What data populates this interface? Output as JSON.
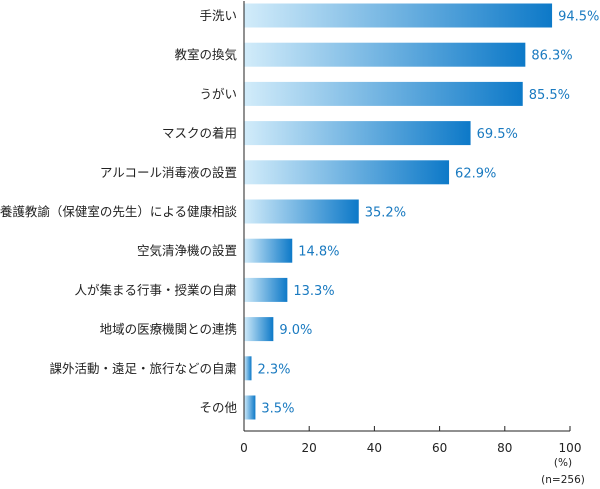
{
  "chart_data": {
    "type": "bar",
    "orientation": "horizontal",
    "categories": [
      "手洗い",
      "教室の換気",
      "うがい",
      "マスクの着用",
      "アルコール消毒液の設置",
      "養護教諭（保健室の先生）による健康相談",
      "空気清浄機の設置",
      "人が集まる行事・授業の自粛",
      "地域の医療機関との連携",
      "課外活動・遠足・旅行などの自粛",
      "その他"
    ],
    "values": [
      94.5,
      86.3,
      85.5,
      69.5,
      62.9,
      35.2,
      14.8,
      13.3,
      9.0,
      2.3,
      3.5
    ],
    "value_labels": [
      "94.5%",
      "86.3%",
      "85.5%",
      "69.5%",
      "62.9%",
      "35.2%",
      "14.8%",
      "13.3%",
      "9.0%",
      "2.3%",
      "3.5%"
    ],
    "xlim": [
      0,
      100
    ],
    "xticks": [
      "0",
      "20",
      "40",
      "60",
      "80",
      "100"
    ],
    "unit_label": "(%)",
    "n_label": "(n=256)",
    "grid": false,
    "colors": {
      "bar_start": "#d2ecfa",
      "bar_end": "#0d79c8",
      "value_text": "#1a7ac0",
      "axis": "#222222"
    }
  }
}
